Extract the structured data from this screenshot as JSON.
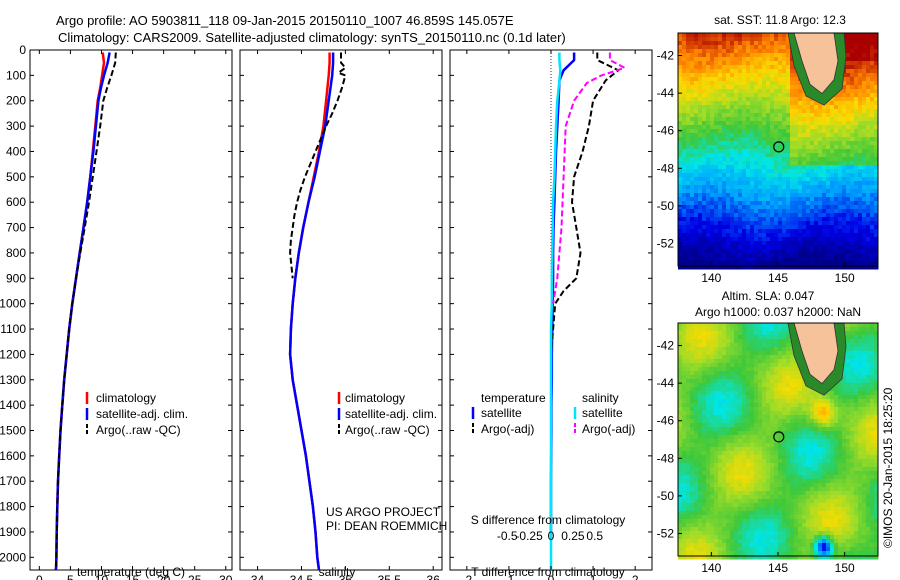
{
  "header": {
    "line1": "Argo profile: AO 5903811_118 09-Jan-2015 20150110_1007 46.859S 145.057E",
    "line2": "Climatology: CARS2009. Satellite-adjusted climatology: synTS_20150110.nc (0.1d later)"
  },
  "side_text": "©IMOS 20-Jan-2015 18:25:20",
  "project_text": {
    "line1": "US ARGO PROJECT",
    "line2": "PI: DEAN ROEMMICH"
  },
  "colors": {
    "climatology": "#ff0000",
    "satellite": "#0000ff",
    "argo": "#000000",
    "sal_satellite": "#00e5ff",
    "sal_argo": "#ff00ff"
  },
  "chart_data": [
    {
      "type": "line",
      "id": "temperature",
      "xlabel": "temperature (deg C)",
      "ylabel": "",
      "xlim": [
        -1.5,
        31
      ],
      "ylim": [
        0,
        2050
      ],
      "y_reversed": true,
      "xticks": [
        0,
        5,
        10,
        15,
        20,
        25,
        30
      ],
      "yticks": [
        0,
        100,
        200,
        300,
        400,
        500,
        600,
        700,
        800,
        900,
        1000,
        1100,
        1200,
        1300,
        1400,
        1500,
        1600,
        1700,
        1800,
        1900,
        2000
      ],
      "legend": [
        "climatology",
        "satellite-adj. clim.",
        "Argo(..raw -QC)"
      ],
      "legend_position": "lower-right",
      "series": [
        {
          "name": "climatology",
          "color": "#ff0000",
          "style": "solid",
          "x": [
            10.2,
            10.4,
            10.1,
            9.8,
            9.4,
            9.0,
            8.6,
            8.2,
            7.7,
            7.1,
            6.5,
            5.9,
            5.3,
            4.8,
            4.4,
            4.0,
            3.7,
            3.4,
            3.2,
            3.0,
            2.9,
            2.8,
            2.75,
            2.7,
            2.65
          ],
          "y": [
            10,
            50,
            100,
            150,
            200,
            300,
            400,
            500,
            600,
            700,
            800,
            900,
            1000,
            1100,
            1200,
            1300,
            1400,
            1500,
            1600,
            1700,
            1800,
            1900,
            2000,
            2040,
            2050
          ]
        },
        {
          "name": "satellite-adj. clim.",
          "color": "#0000ff",
          "style": "solid",
          "x": [
            11.3,
            11.0,
            10.4,
            9.9,
            9.5,
            9.1,
            8.7,
            8.2,
            7.7,
            7.1,
            6.5,
            5.9,
            5.3,
            4.8,
            4.4,
            4.0,
            3.7,
            3.4,
            3.2,
            3.0,
            2.9,
            2.8,
            2.75,
            2.7,
            2.65
          ],
          "y": [
            10,
            50,
            100,
            150,
            200,
            300,
            400,
            500,
            600,
            700,
            800,
            900,
            1000,
            1100,
            1200,
            1300,
            1400,
            1500,
            1600,
            1700,
            1800,
            1900,
            2000,
            2040,
            2050
          ]
        },
        {
          "name": "Argo(..raw -QC)",
          "color": "#000000",
          "style": "dashed",
          "x": [
            12.3,
            12.2,
            11.6,
            10.9,
            10.3,
            9.8,
            9.2,
            8.6,
            8.0,
            7.3,
            6.6,
            5.9,
            5.3,
            4.8,
            4.4,
            4.0,
            3.7,
            3.4,
            3.2,
            3.0,
            2.9,
            2.8,
            2.75,
            2.7,
            2.65
          ],
          "y": [
            10,
            50,
            100,
            150,
            200,
            300,
            400,
            500,
            600,
            700,
            800,
            900,
            1000,
            1100,
            1200,
            1300,
            1400,
            1500,
            1600,
            1700,
            1800,
            1900,
            2000,
            2040,
            2050
          ]
        }
      ]
    },
    {
      "type": "line",
      "id": "salinity",
      "xlabel": "salinity",
      "ylabel": "",
      "xlim": [
        33.8,
        36.1
      ],
      "ylim": [
        0,
        2050
      ],
      "y_reversed": true,
      "xticks": [
        34,
        34.5,
        35,
        35.5,
        36
      ],
      "legend": [
        "climatology",
        "satellite-adj. clim.",
        "Argo(..raw -QC)"
      ],
      "legend_position": "lower-right",
      "series": [
        {
          "name": "climatology",
          "color": "#ff0000",
          "style": "solid",
          "x": [
            34.82,
            34.82,
            34.81,
            34.78,
            34.75,
            34.7,
            34.64,
            34.58,
            34.52,
            34.47,
            34.43,
            34.4,
            34.38,
            34.37,
            34.4,
            34.45,
            34.5,
            34.55,
            34.59,
            34.63,
            34.66,
            34.68,
            34.7
          ],
          "y": [
            10,
            50,
            100,
            200,
            300,
            400,
            500,
            600,
            700,
            800,
            900,
            1000,
            1100,
            1200,
            1300,
            1400,
            1500,
            1600,
            1700,
            1800,
            1900,
            2000,
            2050
          ]
        },
        {
          "name": "satellite-adj. clim.",
          "color": "#0000ff",
          "style": "solid",
          "x": [
            34.86,
            34.86,
            34.85,
            34.81,
            34.77,
            34.71,
            34.65,
            34.58,
            34.52,
            34.47,
            34.43,
            34.4,
            34.38,
            34.37,
            34.4,
            34.45,
            34.5,
            34.55,
            34.59,
            34.63,
            34.66,
            34.68,
            34.7
          ],
          "y": [
            10,
            50,
            100,
            200,
            300,
            400,
            500,
            600,
            700,
            800,
            900,
            1000,
            1100,
            1200,
            1300,
            1400,
            1500,
            1600,
            1700,
            1800,
            1900,
            2000,
            2050
          ]
        },
        {
          "name": "Argo(..raw -QC)",
          "color": "#000000",
          "style": "dashed",
          "x": [
            34.95,
            34.95,
            35.0,
            34.92,
            35.0,
            34.96,
            34.91,
            34.85,
            34.78,
            34.72,
            34.66,
            34.6,
            34.54,
            34.49,
            34.45,
            34.42,
            34.4,
            34.38,
            34.37,
            34.4
          ],
          "y": [
            10,
            50,
            70,
            90,
            100,
            150,
            200,
            250,
            300,
            350,
            400,
            450,
            500,
            550,
            600,
            650,
            700,
            750,
            800,
            900
          ]
        }
      ]
    },
    {
      "type": "line",
      "id": "difference",
      "xlabel": "T difference from climatology",
      "x2label": "S difference from climatology",
      "ylabel": "",
      "xlim": [
        -2.4,
        2.4
      ],
      "ylim": [
        0,
        2050
      ],
      "y_reversed": true,
      "xticks": [
        -2,
        -1,
        0,
        1,
        2
      ],
      "x2ticks": [
        "-0.5",
        "-0.25",
        "0",
        "0.25",
        "0.5"
      ],
      "legend_groups": [
        {
          "title": "temperature",
          "items": [
            "satellite",
            "Argo(-adj)"
          ]
        },
        {
          "title": "salinity",
          "items": [
            "satellite",
            "Argo(-adj)"
          ]
        }
      ],
      "legend_position": "lower-center",
      "series": [
        {
          "name": "temperature satellite",
          "color": "#0000ff",
          "style": "solid",
          "x": [
            0.55,
            0.55,
            0.3,
            0.2,
            0.18,
            0.15,
            0.12,
            0.1,
            0.08,
            0.06,
            0.05,
            0.05,
            0.04,
            0.03,
            0.02,
            0.02,
            0.01,
            0.01,
            0.0,
            0.0
          ],
          "y": [
            10,
            40,
            80,
            120,
            200,
            300,
            400,
            500,
            600,
            700,
            800,
            900,
            1000,
            1100,
            1200,
            1300,
            1400,
            1500,
            1700,
            1900
          ]
        },
        {
          "name": "temperature Argo(-adj)",
          "color": "#000000",
          "style": "dashed",
          "x": [
            1.1,
            1.1,
            1.6,
            1.3,
            1.0,
            0.9,
            0.75,
            0.55,
            0.5,
            0.6,
            0.7,
            0.6,
            0.3,
            0.1,
            0.05,
            0.0
          ],
          "y": [
            10,
            40,
            80,
            120,
            200,
            300,
            400,
            500,
            600,
            700,
            800,
            900,
            950,
            1000,
            1100,
            1200
          ]
        },
        {
          "name": "salinity satellite",
          "color": "#00e5ff",
          "style": "solid",
          "x": [
            0.2,
            0.2,
            0.22,
            0.2,
            0.15,
            0.12,
            0.1,
            0.08,
            0.05,
            0.04,
            0.03,
            0.02,
            0.02,
            0.0,
            0.0,
            0.0,
            0.0,
            0.0,
            0.0,
            0.0,
            0.0
          ],
          "y": [
            10,
            40,
            80,
            120,
            200,
            300,
            400,
            500,
            600,
            700,
            800,
            900,
            1000,
            1100,
            1200,
            1300,
            1400,
            1500,
            1700,
            1900,
            2050
          ]
        },
        {
          "name": "salinity Argo(-adj)",
          "color": "#ff00ff",
          "style": "dashed",
          "x": [
            1.4,
            1.4,
            1.75,
            1.2,
            0.85,
            0.55,
            0.35,
            0.3,
            0.25,
            0.2,
            0.15,
            0.1,
            0.05
          ],
          "y": [
            10,
            40,
            70,
            100,
            130,
            200,
            300,
            500,
            700,
            800,
            900,
            950,
            1000
          ]
        }
      ]
    },
    {
      "type": "heatmap",
      "id": "sst_map",
      "title": "sat. SST: 11.8 Argo: 12.3",
      "xticks": [
        140,
        145,
        150
      ],
      "yticks": [
        -42,
        -44,
        -46,
        -48,
        -50,
        -52
      ],
      "xlim": [
        137.5,
        152.5
      ],
      "ylim": [
        -53.2,
        -40.8
      ],
      "marker": {
        "lon": 145.057,
        "lat": -46.859
      }
    },
    {
      "type": "heatmap",
      "id": "sla_map",
      "title": "Altim. SLA: 0.047",
      "subtitle": "Argo h1000: 0.037 h2000: NaN",
      "xticks": [
        140,
        145,
        150
      ],
      "yticks": [
        -42,
        -44,
        -46,
        -48,
        -50,
        -52
      ],
      "xlim": [
        137.5,
        152.5
      ],
      "ylim": [
        -53.2,
        -40.8
      ],
      "marker": {
        "lon": 145.057,
        "lat": -46.859
      }
    }
  ]
}
